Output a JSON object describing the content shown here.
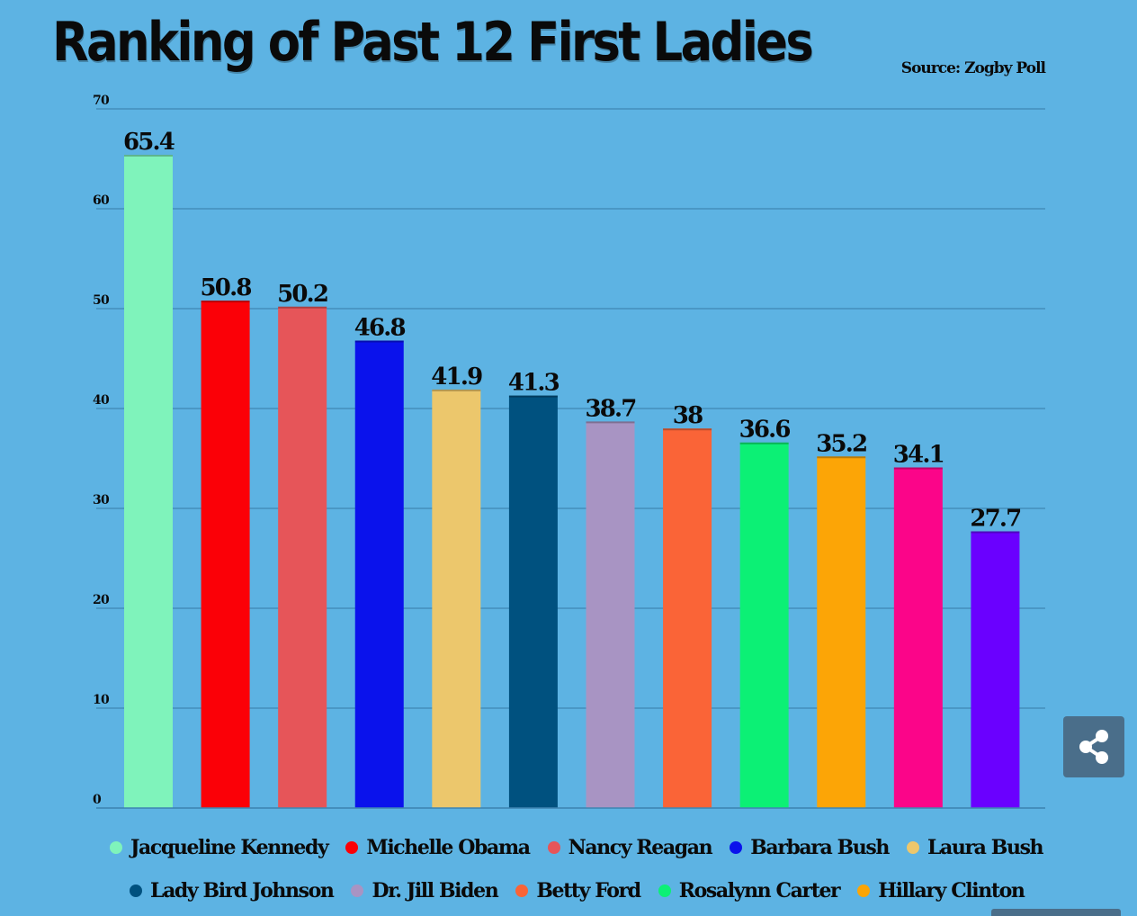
{
  "header": {
    "title": "Ranking of Past 12 First Ladies",
    "source": "Source: Zogby Poll"
  },
  "chart_data": {
    "type": "bar",
    "title": "Ranking of Past 12 First Ladies",
    "xlabel": "",
    "ylabel": "",
    "ylim": [
      0,
      70
    ],
    "yticks": [
      0,
      10,
      20,
      30,
      40,
      50,
      60,
      70
    ],
    "grid": true,
    "legend_position": "bottom",
    "categories": [
      "Jacqueline Kennedy",
      "Michelle Obama",
      "Nancy Reagan",
      "Barbara Bush",
      "Laura Bush",
      "Lady Bird Johnson",
      "Dr. Jill Biden",
      "Betty Ford",
      "Rosalynn Carter",
      "Hillary Clinton",
      "",
      ""
    ],
    "values": [
      65.4,
      50.8,
      50.2,
      46.8,
      41.9,
      41.3,
      38.7,
      38,
      36.6,
      35.2,
      34.1,
      27.7
    ],
    "data_labels": [
      "65.4",
      "50.8",
      "50.2",
      "46.8",
      "41.9",
      "41.3",
      "38.7",
      "38",
      "36.6",
      "35.2",
      "34.1",
      "27.7"
    ],
    "colors": [
      "#7ff3bb",
      "#fb0007",
      "#e65559",
      "#0a12ec",
      "#ecc76c",
      "#00517f",
      "#a894c3",
      "#fa6437",
      "#0cf075",
      "#fca506",
      "#fb0589",
      "#6a00ff"
    ]
  },
  "legend": {
    "row1": [
      {
        "label": "Jacqueline Kennedy",
        "color": "#7ff3bb"
      },
      {
        "label": "Michelle Obama",
        "color": "#fb0007"
      },
      {
        "label": "Nancy Reagan",
        "color": "#e65559"
      },
      {
        "label": "Barbara Bush",
        "color": "#0a12ec"
      },
      {
        "label": "Laura Bush",
        "color": "#ecc76c"
      }
    ],
    "row2": [
      {
        "label": "Lady Bird Johnson",
        "color": "#00517f"
      },
      {
        "label": "Dr. Jill Biden",
        "color": "#a894c3"
      },
      {
        "label": "Betty Ford",
        "color": "#fa6437"
      },
      {
        "label": "Rosalynn Carter",
        "color": "#0cf075"
      },
      {
        "label": "Hillary Clinton",
        "color": "#fca506"
      }
    ]
  },
  "share": {
    "icon": "share-icon"
  }
}
